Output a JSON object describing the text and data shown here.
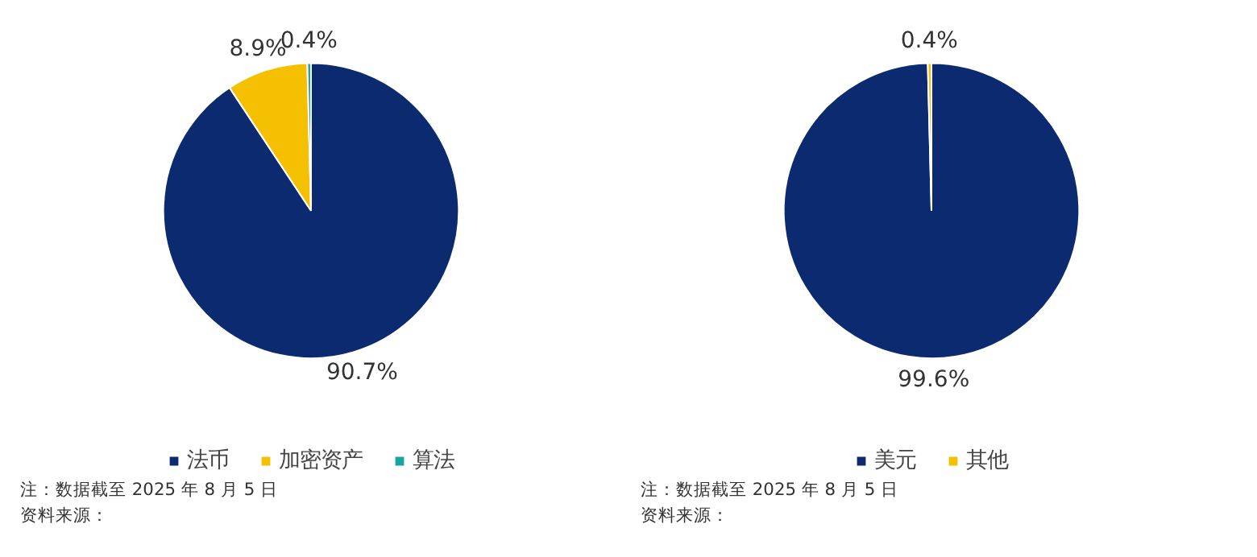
{
  "chart_data": [
    {
      "type": "pie",
      "categories": [
        "法币",
        "加密资产",
        "算法"
      ],
      "values": [
        90.7,
        8.9,
        0.4
      ],
      "value_labels": [
        "90.7%",
        "8.9%",
        "0.4%"
      ],
      "colors": [
        "#0b2a6f",
        "#f5c000",
        "#1aa6a0"
      ],
      "legend": "bottom",
      "annotations": [
        "注：数据截至 2025 年 8 月 5 日",
        "资料来源："
      ]
    },
    {
      "type": "pie",
      "categories": [
        "美元",
        "其他"
      ],
      "values": [
        99.6,
        0.4
      ],
      "value_labels": [
        "99.6%",
        "0.4%"
      ],
      "colors": [
        "#0b2a6f",
        "#f5c000"
      ],
      "legend": "bottom",
      "annotations": [
        "注：数据截至 2025 年 8 月 5 日",
        "资料来源："
      ]
    }
  ]
}
